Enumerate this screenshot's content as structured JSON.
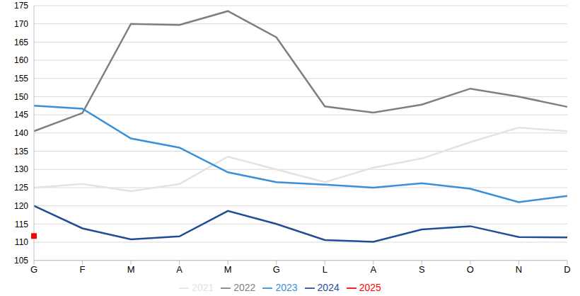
{
  "chart_data": {
    "type": "line",
    "categories": [
      "G",
      "F",
      "M",
      "A",
      "M",
      "G",
      "L",
      "A",
      "S",
      "O",
      "N",
      "D"
    ],
    "series": [
      {
        "name": "2021",
        "color": "#e3e3e3",
        "values": [
          125,
          126,
          124,
          126,
          133.5,
          130,
          126.5,
          130.5,
          133,
          137.5,
          141.5,
          140.5
        ]
      },
      {
        "name": "2022",
        "color": "#7f7f7f",
        "values": [
          140.5,
          145.5,
          170,
          169.7,
          173.5,
          166.3,
          147.3,
          145.6,
          147.8,
          152.2,
          150,
          147.2
        ]
      },
      {
        "name": "2023",
        "color": "#3a8fd9",
        "values": [
          147.5,
          146.7,
          138.5,
          136,
          129.2,
          126.5,
          125.8,
          125,
          126.2,
          124.7,
          121,
          122.7
        ]
      },
      {
        "name": "2024",
        "color": "#1f4e99",
        "values": [
          120,
          113.8,
          110.8,
          111.6,
          118.6,
          115,
          110.6,
          110.1,
          113.5,
          114.4,
          111.4,
          111.3
        ]
      },
      {
        "name": "2025",
        "color": "#ff0000",
        "marker": "square",
        "values": [
          111.7,
          null,
          null,
          null,
          null,
          null,
          null,
          null,
          null,
          null,
          null,
          null
        ]
      }
    ],
    "ylim": [
      105,
      175
    ],
    "yticks": [
      105,
      110,
      115,
      120,
      125,
      130,
      135,
      140,
      145,
      150,
      155,
      160,
      165,
      170,
      175
    ],
    "grid": true,
    "legend": "bottom"
  }
}
